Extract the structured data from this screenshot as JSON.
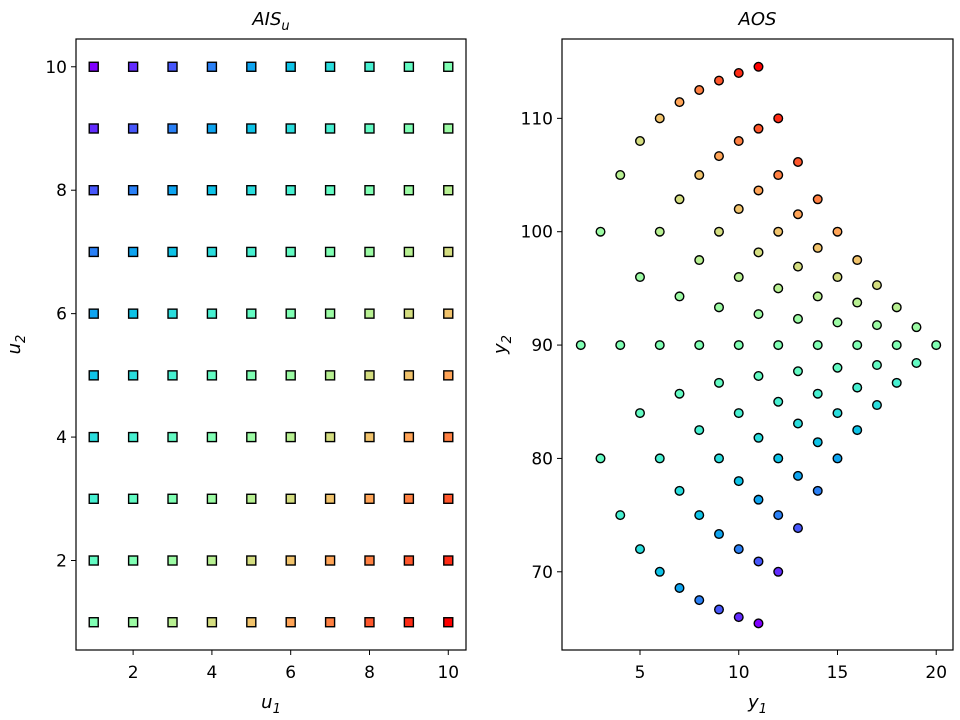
{
  "chart_data": [
    {
      "type": "scatter",
      "marker": "square",
      "title": {
        "text": "AIS",
        "sub": "u"
      },
      "x_label": {
        "text": "u",
        "sub": "1"
      },
      "y_label": {
        "text": "u",
        "sub": "2"
      },
      "xlim": [
        0.55,
        10.45
      ],
      "ylim": [
        0.55,
        10.45
      ],
      "xticks": [
        2,
        4,
        6,
        8,
        10
      ],
      "yticks": [
        2,
        4,
        6,
        8,
        10
      ],
      "series": [
        {
          "color": "#8000ff",
          "x": [
            1
          ],
          "y": [
            10
          ]
        },
        {
          "color": "#632cfe",
          "x": [
            1,
            2
          ],
          "y": [
            9,
            10
          ]
        },
        {
          "color": "#4757fb",
          "x": [
            1,
            2,
            3
          ],
          "y": [
            8,
            9,
            10
          ]
        },
        {
          "color": "#2a80f6",
          "x": [
            1,
            2,
            3,
            4
          ],
          "y": [
            7,
            8,
            9,
            10
          ]
        },
        {
          "color": "#0ea4f0",
          "x": [
            1,
            2,
            3,
            4,
            5
          ],
          "y": [
            6,
            7,
            8,
            9,
            10
          ]
        },
        {
          "color": "#0ec3e7",
          "x": [
            1,
            2,
            3,
            4,
            5,
            6
          ],
          "y": [
            5,
            6,
            7,
            8,
            9,
            10
          ]
        },
        {
          "color": "#2adddd",
          "x": [
            1,
            2,
            3,
            4,
            5,
            6,
            7
          ],
          "y": [
            4,
            5,
            6,
            7,
            8,
            9,
            10
          ]
        },
        {
          "color": "#47f0d1",
          "x": [
            1,
            2,
            3,
            4,
            5,
            6,
            7,
            8
          ],
          "y": [
            3,
            4,
            5,
            6,
            7,
            8,
            9,
            10
          ]
        },
        {
          "color": "#63fbc3",
          "x": [
            1,
            2,
            3,
            4,
            5,
            6,
            7,
            8,
            9
          ],
          "y": [
            2,
            3,
            4,
            5,
            6,
            7,
            8,
            9,
            10
          ]
        },
        {
          "color": "#80ffb4",
          "x": [
            1,
            2,
            3,
            4,
            5,
            6,
            7,
            8,
            9,
            10
          ],
          "y": [
            1,
            2,
            3,
            4,
            5,
            6,
            7,
            8,
            9,
            10
          ]
        },
        {
          "color": "#9cfba4",
          "x": [
            2,
            3,
            4,
            5,
            6,
            7,
            8,
            9,
            10
          ],
          "y": [
            1,
            2,
            3,
            4,
            5,
            6,
            7,
            8,
            9
          ]
        },
        {
          "color": "#b8f092",
          "x": [
            3,
            4,
            5,
            6,
            7,
            8,
            9,
            10
          ],
          "y": [
            1,
            2,
            3,
            4,
            5,
            6,
            7,
            8
          ]
        },
        {
          "color": "#d4dd80",
          "x": [
            4,
            5,
            6,
            7,
            8,
            9,
            10
          ],
          "y": [
            1,
            2,
            3,
            4,
            5,
            6,
            7
          ]
        },
        {
          "color": "#f1c36c",
          "x": [
            5,
            6,
            7,
            8,
            9,
            10
          ],
          "y": [
            1,
            2,
            3,
            4,
            5,
            6
          ]
        },
        {
          "color": "#ffa457",
          "x": [
            6,
            7,
            8,
            9,
            10
          ],
          "y": [
            1,
            2,
            3,
            4,
            5
          ]
        },
        {
          "color": "#ff8042",
          "x": [
            7,
            8,
            9,
            10
          ],
          "y": [
            1,
            2,
            3,
            4
          ]
        },
        {
          "color": "#ff572c",
          "x": [
            8,
            9,
            10
          ],
          "y": [
            1,
            2,
            3
          ]
        },
        {
          "color": "#ff2c16",
          "x": [
            9,
            10
          ],
          "y": [
            1,
            2
          ]
        },
        {
          "color": "#ff0000",
          "x": [
            10
          ],
          "y": [
            1
          ]
        }
      ]
    },
    {
      "type": "scatter",
      "marker": "circle",
      "title": {
        "text": "AOS"
      },
      "x_label": {
        "text": "y",
        "sub": "1"
      },
      "y_label": {
        "text": "y",
        "sub": "2"
      },
      "xlim": [
        1.05,
        20.85
      ],
      "ylim": [
        63.1,
        117
      ],
      "xticks": [
        5,
        10,
        15,
        20
      ],
      "yticks": [
        70,
        80,
        90,
        100,
        110
      ],
      "series": [
        {
          "color": "#8000ff",
          "x": [
            11
          ],
          "y": [
            65.45
          ]
        },
        {
          "color": "#632cfe",
          "x": [
            10,
            12
          ],
          "y": [
            66,
            70
          ]
        },
        {
          "color": "#4757fb",
          "x": [
            9,
            11,
            13
          ],
          "y": [
            66.67,
            70.91,
            73.85
          ]
        },
        {
          "color": "#2a80f6",
          "x": [
            8,
            10,
            12,
            14
          ],
          "y": [
            67.5,
            72,
            75,
            77.14
          ]
        },
        {
          "color": "#0ea4f0",
          "x": [
            7,
            9,
            11,
            13,
            15
          ],
          "y": [
            68.57,
            73.33,
            76.36,
            78.46,
            80
          ]
        },
        {
          "color": "#0ec3e7",
          "x": [
            6,
            8,
            10,
            12,
            14,
            16
          ],
          "y": [
            70,
            75,
            78,
            80,
            81.43,
            82.5
          ]
        },
        {
          "color": "#2adddd",
          "x": [
            5,
            7,
            9,
            11,
            13,
            15,
            17
          ],
          "y": [
            72,
            77.14,
            80,
            81.82,
            83.08,
            84,
            84.71
          ]
        },
        {
          "color": "#47f0d1",
          "x": [
            4,
            6,
            8,
            10,
            12,
            14,
            16,
            18
          ],
          "y": [
            75,
            80,
            82.5,
            84,
            85,
            85.71,
            86.25,
            86.67
          ]
        },
        {
          "color": "#63fbc3",
          "x": [
            3,
            5,
            7,
            9,
            11,
            13,
            15,
            17,
            19
          ],
          "y": [
            80,
            84,
            85.71,
            86.67,
            87.27,
            87.69,
            88,
            88.24,
            88.42
          ]
        },
        {
          "color": "#80ffb4",
          "x": [
            2,
            4,
            6,
            8,
            10,
            12,
            14,
            16,
            18,
            20
          ],
          "y": [
            90,
            90,
            90,
            90,
            90,
            90,
            90,
            90,
            90,
            90
          ]
        },
        {
          "color": "#9cfba4",
          "x": [
            3,
            5,
            7,
            9,
            11,
            13,
            15,
            17,
            19
          ],
          "y": [
            100,
            96,
            94.29,
            93.33,
            92.73,
            92.31,
            92,
            91.76,
            91.58
          ]
        },
        {
          "color": "#b8f092",
          "x": [
            4,
            6,
            8,
            10,
            12,
            14,
            16,
            18
          ],
          "y": [
            105,
            100,
            97.5,
            96,
            95,
            94.29,
            93.75,
            93.33
          ]
        },
        {
          "color": "#d4dd80",
          "x": [
            5,
            7,
            9,
            11,
            13,
            15,
            17
          ],
          "y": [
            108,
            102.86,
            100,
            98.18,
            96.92,
            96,
            95.29
          ]
        },
        {
          "color": "#f1c36c",
          "x": [
            6,
            8,
            10,
            12,
            14,
            16
          ],
          "y": [
            110,
            105,
            102,
            100,
            98.57,
            97.5
          ]
        },
        {
          "color": "#ffa457",
          "x": [
            7,
            9,
            11,
            13,
            15
          ],
          "y": [
            111.43,
            106.67,
            103.64,
            101.54,
            100
          ]
        },
        {
          "color": "#ff8042",
          "x": [
            8,
            10,
            12,
            14
          ],
          "y": [
            112.5,
            108,
            105,
            102.86
          ]
        },
        {
          "color": "#ff572c",
          "x": [
            9,
            11,
            13
          ],
          "y": [
            113.33,
            109.09,
            106.15
          ]
        },
        {
          "color": "#ff2c16",
          "x": [
            10,
            12
          ],
          "y": [
            114,
            110
          ]
        },
        {
          "color": "#ff0000",
          "x": [
            11
          ],
          "y": [
            114.55
          ]
        }
      ]
    }
  ]
}
